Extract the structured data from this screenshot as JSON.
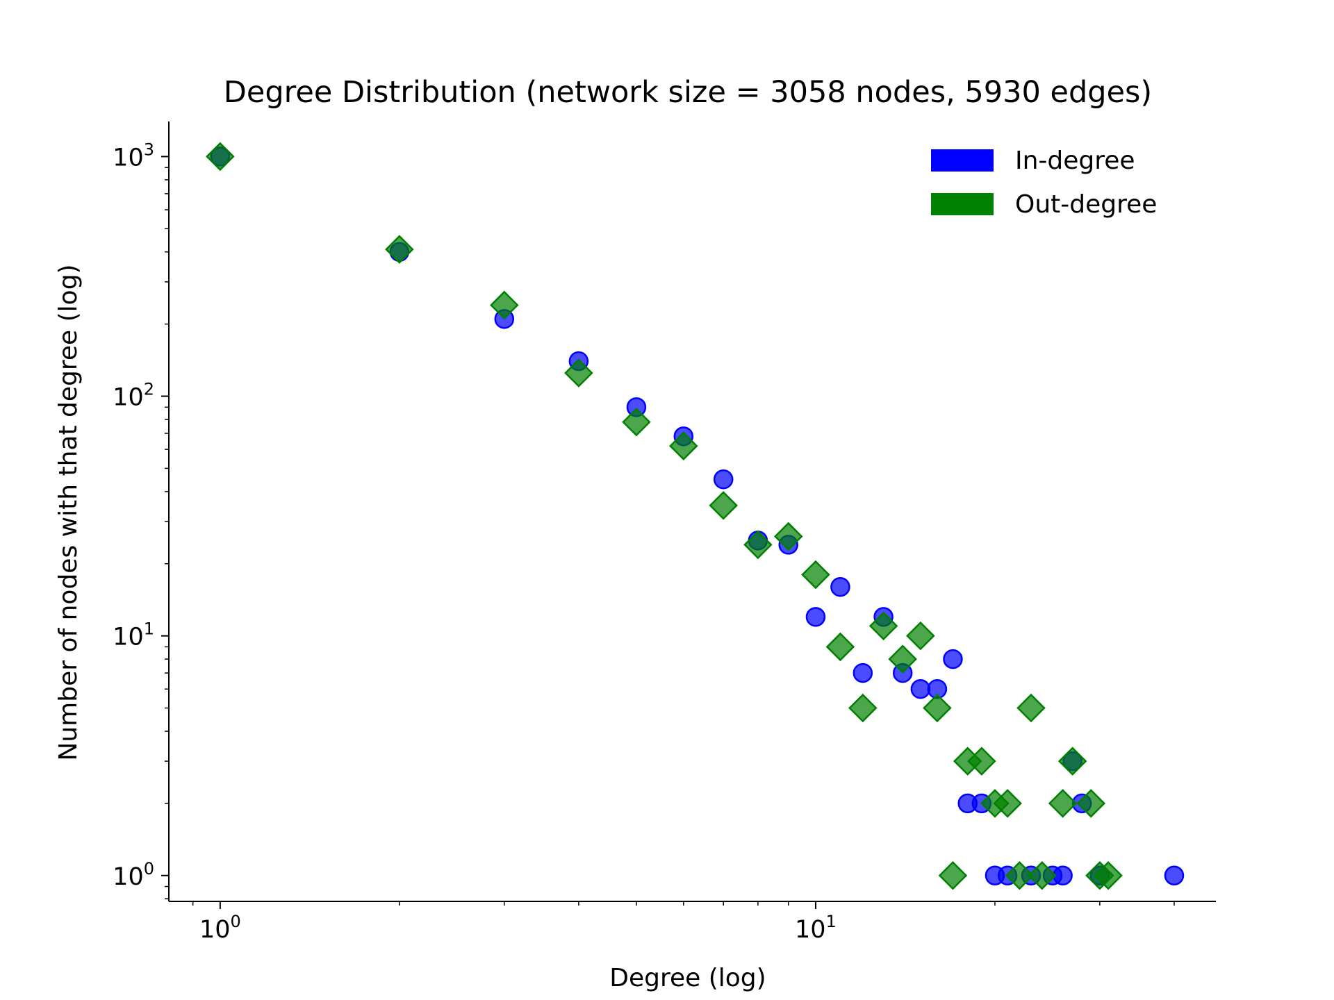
{
  "chart_data": {
    "type": "scatter",
    "title": "Degree Distribution (network size = 3058 nodes, 5930 edges)",
    "xlabel": "Degree (log)",
    "ylabel": "Number of nodes with that degree (log)",
    "xscale": "log",
    "yscale": "log",
    "xlim": [
      0.82,
      47
    ],
    "ylim": [
      0.78,
      1400
    ],
    "x_ticks": [
      {
        "value": 1,
        "base": "10",
        "exp": "0"
      },
      {
        "value": 10,
        "base": "10",
        "exp": "1"
      }
    ],
    "y_ticks": [
      {
        "value": 1,
        "base": "10",
        "exp": "0"
      },
      {
        "value": 10,
        "base": "10",
        "exp": "1"
      },
      {
        "value": 100,
        "base": "10",
        "exp": "2"
      },
      {
        "value": 1000,
        "base": "10",
        "exp": "3"
      }
    ],
    "grid": false,
    "legend_position": "top-right",
    "series": [
      {
        "name": "In-degree",
        "color": "#0000ff",
        "marker": "circle",
        "points": [
          [
            1,
            1000
          ],
          [
            2,
            400
          ],
          [
            3,
            210
          ],
          [
            4,
            140
          ],
          [
            5,
            90
          ],
          [
            6,
            68
          ],
          [
            7,
            45
          ],
          [
            8,
            25
          ],
          [
            9,
            24
          ],
          [
            10,
            12
          ],
          [
            11,
            16
          ],
          [
            12,
            7
          ],
          [
            13,
            12
          ],
          [
            14,
            7
          ],
          [
            15,
            6
          ],
          [
            16,
            6
          ],
          [
            17,
            8
          ],
          [
            18,
            2
          ],
          [
            19,
            2
          ],
          [
            20,
            1
          ],
          [
            21,
            1
          ],
          [
            23,
            1
          ],
          [
            25,
            1
          ],
          [
            26,
            1
          ],
          [
            27,
            3
          ],
          [
            28,
            2
          ],
          [
            30,
            1
          ],
          [
            40,
            1
          ]
        ]
      },
      {
        "name": "Out-degree",
        "color": "#008000",
        "marker": "diamond",
        "points": [
          [
            1,
            1000
          ],
          [
            2,
            410
          ],
          [
            3,
            240
          ],
          [
            4,
            125
          ],
          [
            5,
            78
          ],
          [
            6,
            62
          ],
          [
            7,
            35
          ],
          [
            8,
            24
          ],
          [
            9,
            26
          ],
          [
            10,
            18
          ],
          [
            11,
            9
          ],
          [
            12,
            5
          ],
          [
            13,
            11
          ],
          [
            14,
            8
          ],
          [
            15,
            10
          ],
          [
            16,
            5
          ],
          [
            17,
            1
          ],
          [
            18,
            3
          ],
          [
            19,
            3
          ],
          [
            20,
            2
          ],
          [
            21,
            2
          ],
          [
            22,
            1
          ],
          [
            23,
            5
          ],
          [
            24,
            1
          ],
          [
            26,
            2
          ],
          [
            27,
            3
          ],
          [
            29,
            2
          ],
          [
            30,
            1
          ],
          [
            31,
            1
          ]
        ]
      }
    ]
  }
}
